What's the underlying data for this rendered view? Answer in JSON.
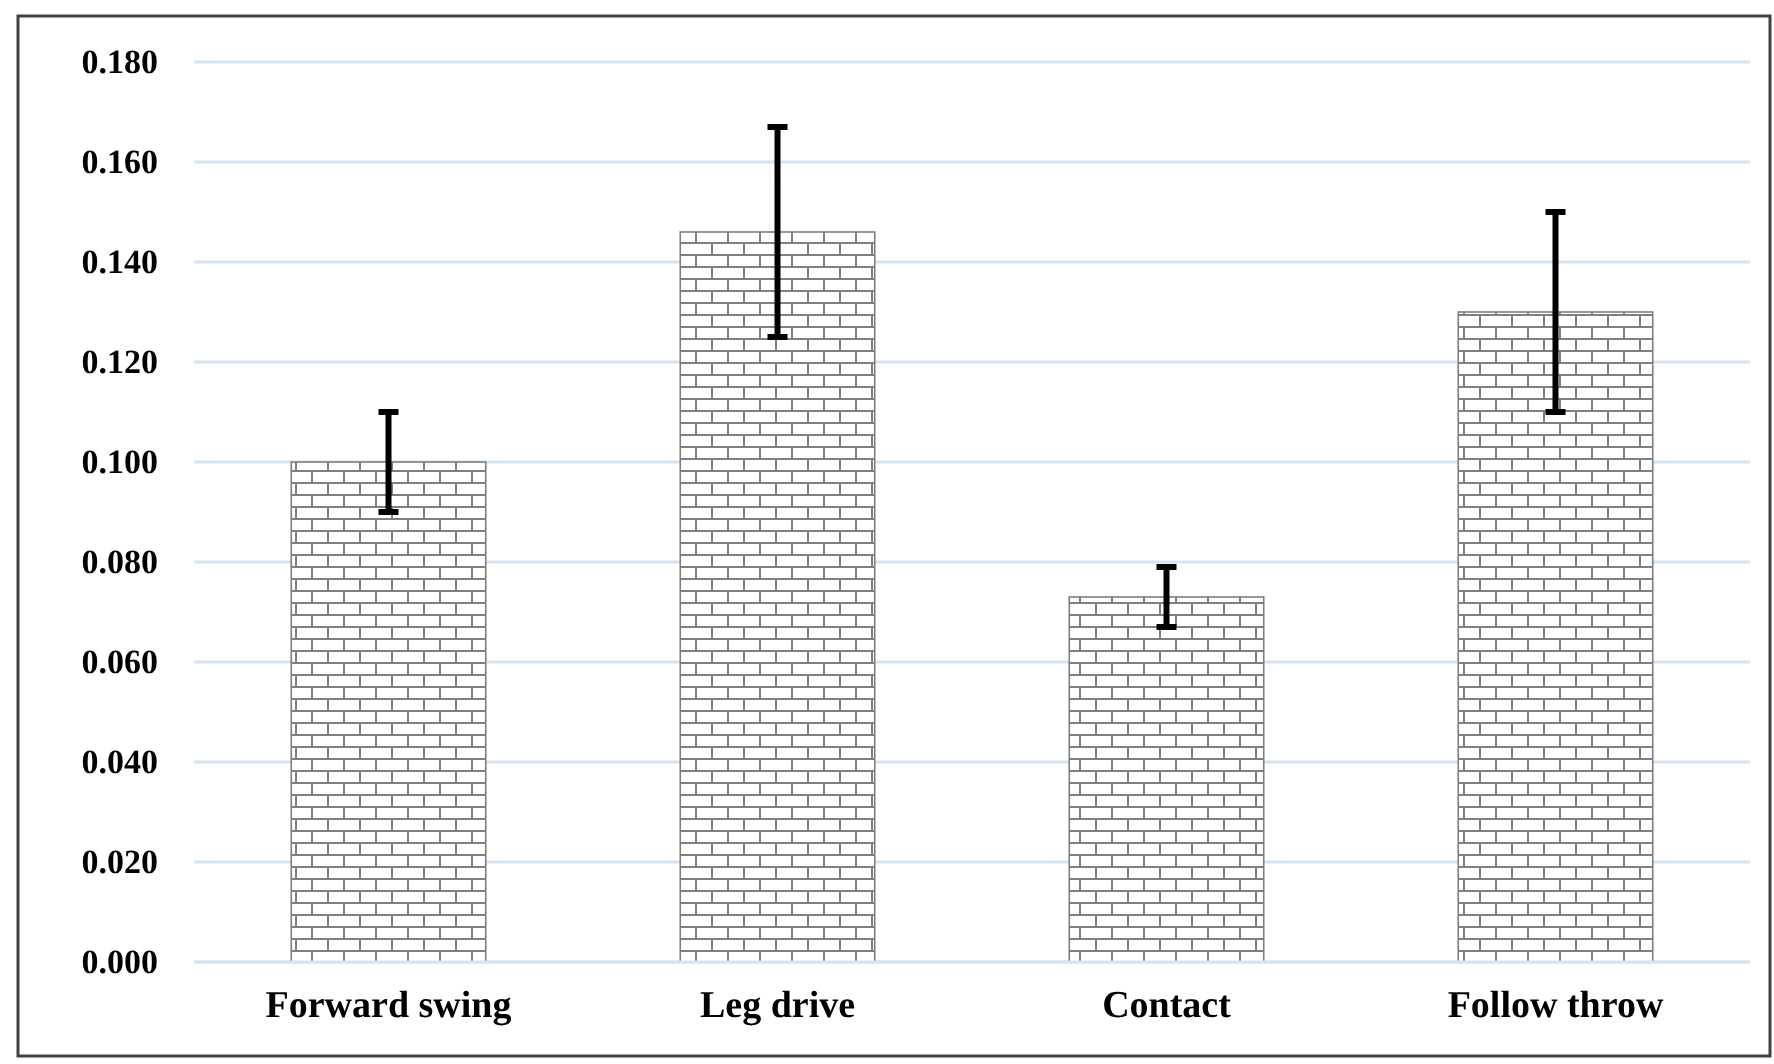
{
  "chart_data": {
    "type": "bar",
    "categories": [
      "Forward swing",
      "Leg drive",
      "Contact",
      "Follow throw"
    ],
    "values": [
      0.1,
      0.146,
      0.073,
      0.13
    ],
    "errors": [
      0.01,
      0.021,
      0.006,
      0.02
    ],
    "color": "#7f7f7f",
    "ylim": [
      0,
      0.18
    ],
    "yticks": [
      {
        "value": 0,
        "label": "0.000"
      },
      {
        "value": 0.02,
        "label": "0.020"
      },
      {
        "value": 0.04,
        "label": "0.040"
      },
      {
        "value": 0.06,
        "label": "0.060"
      },
      {
        "value": 0.08,
        "label": "0.080"
      },
      {
        "value": 0.1,
        "label": "0.100"
      },
      {
        "value": 0.12,
        "label": "0.120"
      },
      {
        "value": 0.14,
        "label": "0.140"
      },
      {
        "value": 0.16,
        "label": "0.160"
      },
      {
        "value": 0.18,
        "label": "0.180"
      }
    ],
    "grid": "y"
  }
}
